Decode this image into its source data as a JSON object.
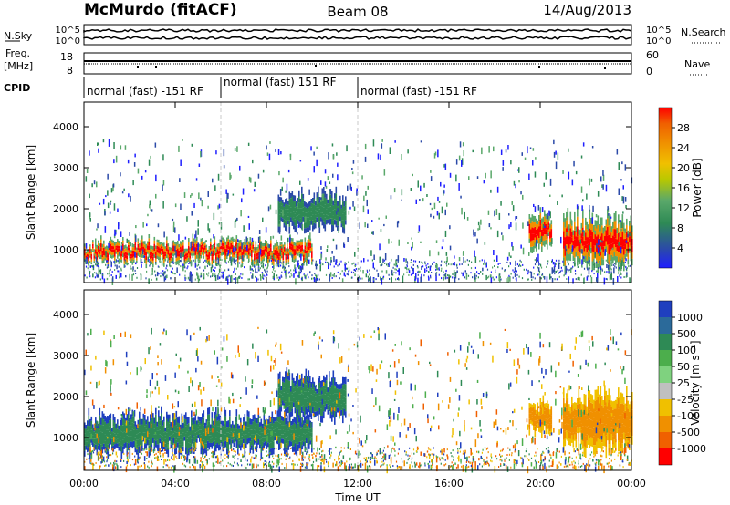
{
  "header": {
    "station": "McMurdo (fitACF)",
    "beam": "Beam 08",
    "date": "14/Aug/2013"
  },
  "strip_panels": {
    "noise": {
      "left_label": "N.Sky",
      "right_label": "N.Search",
      "left_ticks": [
        "10^5",
        "10^0"
      ],
      "right_ticks": [
        "10^5",
        "10^0"
      ]
    },
    "freq": {
      "left_label_line1": "Freq.",
      "left_label_line2": "[MHz]",
      "right_label": "Nave",
      "left_ticks": [
        "18",
        "8"
      ],
      "right_ticks": [
        "60",
        "0"
      ]
    },
    "cpid": {
      "label": "CPID",
      "segments": [
        {
          "label": "normal (fast) -151 RF",
          "start_hour": 0,
          "end_hour": 6
        },
        {
          "label": "normal (fast) 151 RF",
          "start_hour": 6,
          "end_hour": 12
        },
        {
          "label": "normal (fast) -151 RF",
          "start_hour": 12,
          "end_hour": 24
        }
      ]
    }
  },
  "chart_data": [
    {
      "type": "heatmap",
      "name": "power",
      "xlabel": "Time UT",
      "ylabel": "Slant Range [km]",
      "xlim": [
        0,
        24
      ],
      "ylim": [
        200,
        4600
      ],
      "x_ticks": [
        "00:00",
        "04:00",
        "08:00",
        "12:00",
        "16:00",
        "20:00",
        "00:00"
      ],
      "y_ticks": [
        1000,
        2000,
        3000,
        4000
      ],
      "colorbar": {
        "label": "Power [dB]",
        "tick_labels": [
          "4",
          "8",
          "12",
          "16",
          "20",
          "24",
          "28"
        ],
        "colors": [
          "#1f1fff",
          "#2b4aa8",
          "#2e8a55",
          "#5aa86a",
          "#b8c800",
          "#f0c000",
          "#f09000",
          "#f06000",
          "#ff0000"
        ]
      },
      "echo_regions": [
        {
          "t_start": 0.0,
          "t_end": 10.0,
          "range_center_km": 950,
          "range_halfwidth_km": 250,
          "level_db": 26
        },
        {
          "t_start": 8.5,
          "t_end": 11.5,
          "range_center_km": 1900,
          "range_halfwidth_km": 450,
          "level_db": 12
        },
        {
          "t_start": 19.5,
          "t_end": 20.5,
          "range_center_km": 1500,
          "range_halfwidth_km": 400,
          "level_db": 18
        },
        {
          "t_start": 21.0,
          "t_end": 24.0,
          "range_center_km": 1200,
          "range_halfwidth_km": 600,
          "level_db": 22
        }
      ]
    },
    {
      "type": "heatmap",
      "name": "velocity",
      "xlabel": "Time UT",
      "ylabel": "Slant Range [km]",
      "xlim": [
        0,
        24
      ],
      "ylim": [
        200,
        4600
      ],
      "x_ticks": [
        "00:00",
        "04:00",
        "08:00",
        "12:00",
        "16:00",
        "20:00",
        "00:00"
      ],
      "y_ticks": [
        1000,
        2000,
        3000,
        4000
      ],
      "colorbar": {
        "label": "Velocity [m s⁻¹]",
        "tick_labels": [
          "1000",
          "500",
          "100",
          "50",
          "25",
          "-25",
          "-100",
          "-500",
          "-1000"
        ],
        "colors": [
          "#1f3fbf",
          "#2b6a9a",
          "#2e8a55",
          "#4cae4c",
          "#7fd27f",
          "#c0c0c0",
          "#f0c000",
          "#f09000",
          "#f06000",
          "#ff0000"
        ]
      },
      "echo_regions": [
        {
          "t_start": 0.0,
          "t_end": 10.0,
          "range_center_km": 1100,
          "range_halfwidth_km": 450,
          "level_ms": 60
        },
        {
          "t_start": 8.5,
          "t_end": 11.5,
          "range_center_km": 2000,
          "range_halfwidth_km": 500,
          "level_ms": 40
        },
        {
          "t_start": 19.5,
          "t_end": 20.5,
          "range_center_km": 1500,
          "range_halfwidth_km": 400,
          "level_ms": -120
        },
        {
          "t_start": 21.0,
          "t_end": 24.0,
          "range_center_km": 1400,
          "range_halfwidth_km": 700,
          "level_ms": -100
        }
      ]
    }
  ]
}
